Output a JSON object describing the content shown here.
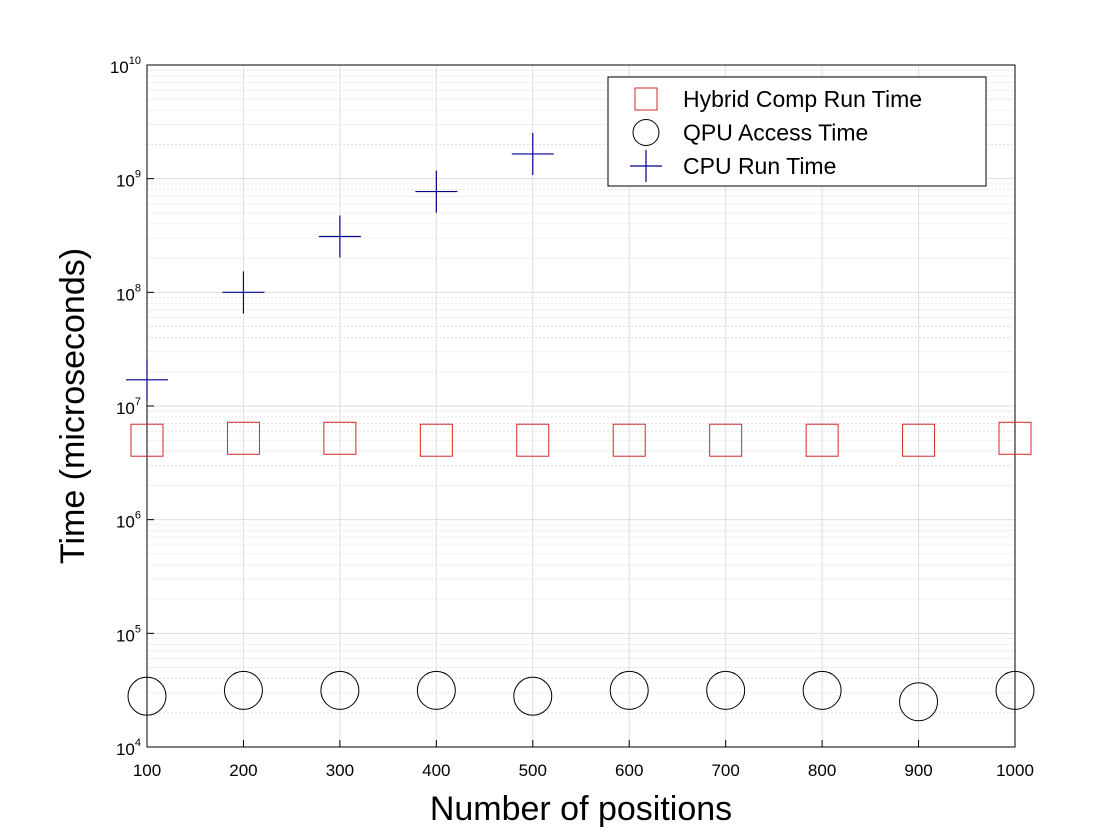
{
  "chart_data": {
    "type": "scatter",
    "title": "",
    "xlabel": "Number of positions",
    "ylabel": "Time (microseconds)",
    "xlim": [
      100,
      1000
    ],
    "xticks": [
      100,
      200,
      300,
      400,
      500,
      600,
      700,
      800,
      900,
      1000
    ],
    "ylim": [
      10000,
      10000000000
    ],
    "yscale": "log",
    "yticks": [
      {
        "value": 10000,
        "base": "10",
        "exp": "4"
      },
      {
        "value": 100000,
        "base": "10",
        "exp": "5"
      },
      {
        "value": 1000000,
        "base": "10",
        "exp": "6"
      },
      {
        "value": 10000000,
        "base": "10",
        "exp": "7"
      },
      {
        "value": 100000000,
        "base": "10",
        "exp": "8"
      },
      {
        "value": 1000000000,
        "base": "10",
        "exp": "9"
      },
      {
        "value": 10000000000,
        "base": "10",
        "exp": "10"
      }
    ],
    "grid": true,
    "minor_grid": true,
    "legend_position": "top-right",
    "series": [
      {
        "name": "Hybrid Comp Run Time",
        "marker": "square",
        "color": "#d62728",
        "x": [
          100,
          200,
          300,
          400,
          500,
          600,
          700,
          800,
          900,
          1000
        ],
        "y": [
          5000000,
          5200000,
          5200000,
          5000000,
          5000000,
          5000000,
          5000000,
          5000000,
          5000000,
          5200000
        ]
      },
      {
        "name": "QPU Access Time",
        "marker": "circle",
        "color": "#000000",
        "x": [
          100,
          200,
          300,
          400,
          500,
          600,
          700,
          800,
          900,
          1000
        ],
        "y": [
          28000,
          31500,
          31500,
          31500,
          28000,
          31500,
          31500,
          31500,
          25000,
          31500
        ]
      },
      {
        "name": "CPU Run Time",
        "marker": "plus",
        "color": "#00008b",
        "x": [
          100,
          200,
          300,
          400,
          500
        ],
        "y": [
          17000000,
          100000000,
          310000000,
          770000000,
          1650000000
        ]
      }
    ]
  }
}
